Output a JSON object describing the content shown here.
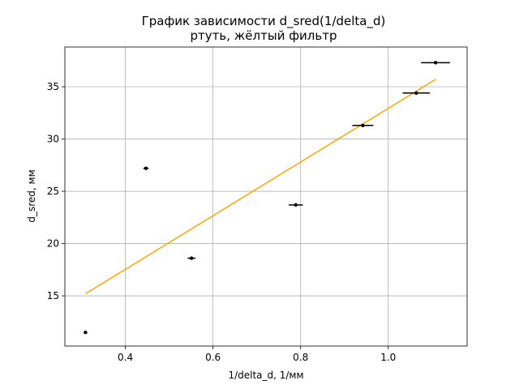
{
  "chart_data": {
    "type": "scatter",
    "title_line1": "График зависимости d_sred(1/delta_d)",
    "title_line2": "ртуть, жёлтый фильтр",
    "xlabel": "1/delta_d, 1/мм",
    "ylabel": "d_sred, мм",
    "xlim": [
      0.262,
      1.18
    ],
    "ylim": [
      10.2,
      38.8
    ],
    "xticks": [
      0.4,
      0.6,
      0.8,
      1.0
    ],
    "xtick_labels": [
      "0.4",
      "0.6",
      "0.8",
      "1.0"
    ],
    "yticks": [
      15,
      20,
      25,
      30,
      35
    ],
    "ytick_labels": [
      "15",
      "20",
      "25",
      "30",
      "35"
    ],
    "grid": true,
    "points": [
      {
        "x": 0.309,
        "y": 11.5,
        "xerr": 0.004
      },
      {
        "x": 0.447,
        "y": 27.2,
        "xerr": 0.006
      },
      {
        "x": 0.551,
        "y": 18.6,
        "xerr": 0.009
      },
      {
        "x": 0.789,
        "y": 23.7,
        "xerr": 0.016
      },
      {
        "x": 0.942,
        "y": 31.3,
        "xerr": 0.024
      },
      {
        "x": 1.064,
        "y": 34.4,
        "xerr": 0.031
      },
      {
        "x": 1.108,
        "y": 37.3,
        "xerr": 0.033
      }
    ],
    "fit_line": {
      "x": [
        0.309,
        1.108
      ],
      "y": [
        15.2,
        35.7
      ]
    },
    "colors": {
      "points": "#000000",
      "fit": "#ffa500",
      "grid": "#b0b0b0"
    }
  }
}
